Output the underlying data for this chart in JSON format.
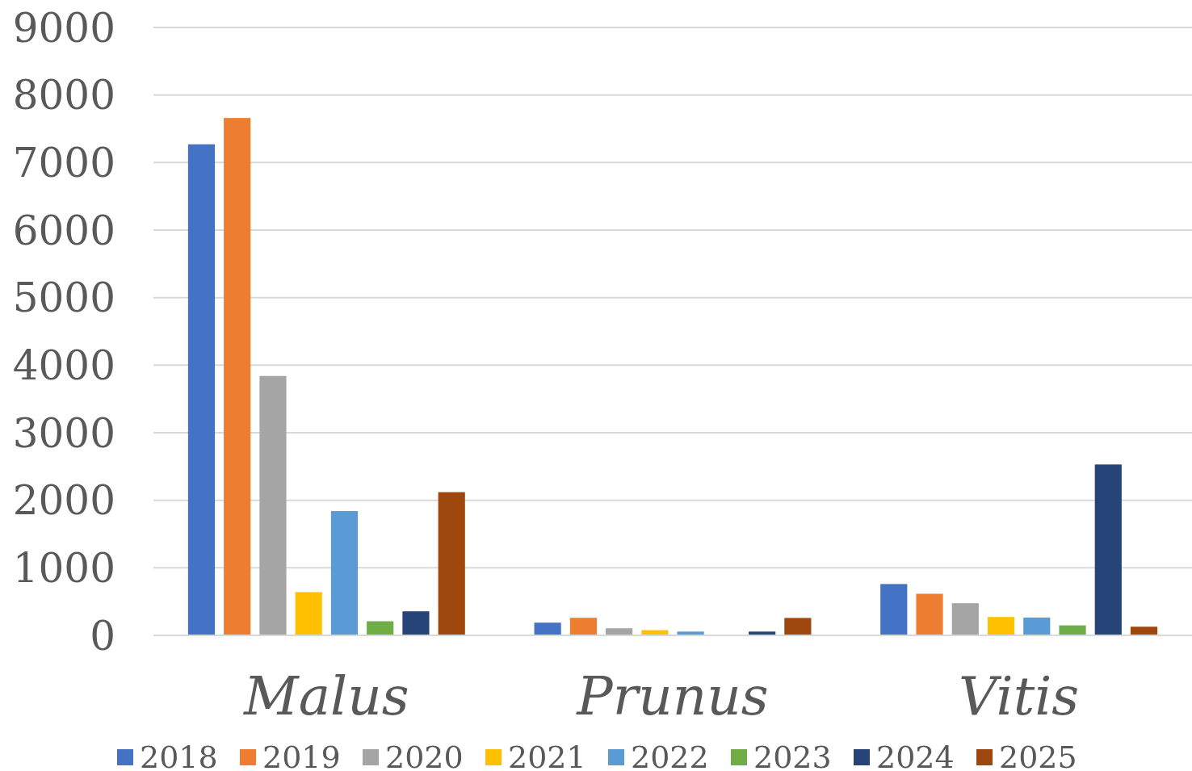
{
  "chart_data": {
    "type": "bar",
    "categories": [
      "Malus",
      "Prunus",
      "Vitis"
    ],
    "series": [
      {
        "name": "2018",
        "color": "#4472c4",
        "values": [
          7270,
          188,
          760
        ]
      },
      {
        "name": "2019",
        "color": "#ed7d31",
        "values": [
          7660,
          260,
          616
        ]
      },
      {
        "name": "2020",
        "color": "#a5a5a5",
        "values": [
          3840,
          105,
          476
        ]
      },
      {
        "name": "2021",
        "color": "#ffc000",
        "values": [
          640,
          77,
          272
        ]
      },
      {
        "name": "2022",
        "color": "#5b9bd5",
        "values": [
          1840,
          56,
          264
        ]
      },
      {
        "name": "2023",
        "color": "#70ad47",
        "values": [
          209,
          0,
          148
        ]
      },
      {
        "name": "2024",
        "color": "#264478",
        "values": [
          356,
          56,
          2530
        ]
      },
      {
        "name": "2025",
        "color": "#9e480e",
        "values": [
          2120,
          258,
          128
        ]
      }
    ],
    "ylim": [
      0,
      9000
    ],
    "yticks": [
      0,
      1000,
      2000,
      3000,
      4000,
      5000,
      6000,
      7000,
      8000,
      9000
    ],
    "grid": "y",
    "legend": "bottom"
  }
}
